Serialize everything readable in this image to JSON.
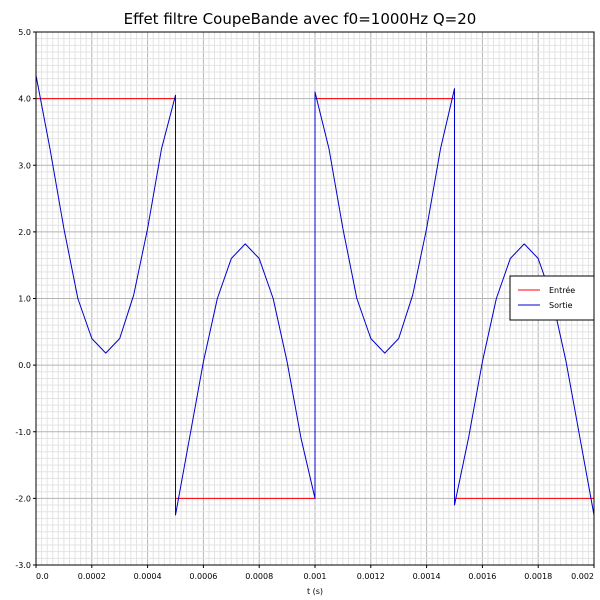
{
  "chart_data": {
    "type": "line",
    "title": "Effet filtre CoupeBande avec f0=1000Hz Q=20",
    "xlabel": "t (s)",
    "ylabel": "",
    "xlim": [
      0,
      0.002
    ],
    "ylim": [
      -3.0,
      5.0
    ],
    "grid": true,
    "legend_position": "right",
    "x_ticks": [
      "0.0",
      "0.0002",
      "0.0004",
      "0.0006",
      "0.0008",
      "0.001",
      "0.0012",
      "0.0014",
      "0.0016",
      "0.0018",
      "0.002"
    ],
    "y_ticks": [
      "5.0",
      "4.0",
      "3.0",
      "2.0",
      "1.0",
      "0.0",
      "-1.0",
      "-2.0",
      "-3.0"
    ],
    "series": [
      {
        "name": "Entrée",
        "color": "#ff0000",
        "x": [
          0,
          0,
          0.0005,
          0.0005,
          0.001,
          0.001,
          0.0015,
          0.0015,
          0.002,
          0.002
        ],
        "y": [
          1.0,
          4.0,
          4.0,
          -2.0,
          -2.0,
          4.0,
          4.0,
          -2.0,
          -2.0,
          4.0
        ]
      },
      {
        "name": "Sortie",
        "color": "#0000cc",
        "x": [
          0,
          0,
          5e-05,
          0.0001,
          0.00015,
          0.0002,
          0.00025,
          0.0003,
          0.00035,
          0.0004,
          0.00045,
          0.0005,
          0.0005,
          0.00055,
          0.0006,
          0.00065,
          0.0007,
          0.00075,
          0.0008,
          0.00085,
          0.0009,
          0.00095,
          0.001,
          0.001,
          0.00105,
          0.0011,
          0.00115,
          0.0012,
          0.00125,
          0.0013,
          0.00135,
          0.0014,
          0.00145,
          0.0015,
          0.0015,
          0.00155,
          0.0016,
          0.00165,
          0.0017,
          0.00175,
          0.0018,
          0.00185,
          0.0019,
          0.00195,
          0.002,
          0.002
        ],
        "y": [
          1.0,
          4.35,
          3.25,
          2.05,
          1.0,
          0.4,
          0.18,
          0.4,
          1.05,
          2.05,
          3.25,
          4.05,
          -2.25,
          -1.1,
          0.05,
          1.0,
          1.6,
          1.82,
          1.6,
          1.0,
          0.05,
          -1.1,
          -2.0,
          4.1,
          3.25,
          2.05,
          1.0,
          0.4,
          0.18,
          0.4,
          1.05,
          2.05,
          3.25,
          4.15,
          -2.1,
          -1.1,
          0.05,
          1.0,
          1.6,
          1.82,
          1.6,
          1.0,
          0.05,
          -1.1,
          -2.25,
          1.0
        ]
      }
    ]
  }
}
